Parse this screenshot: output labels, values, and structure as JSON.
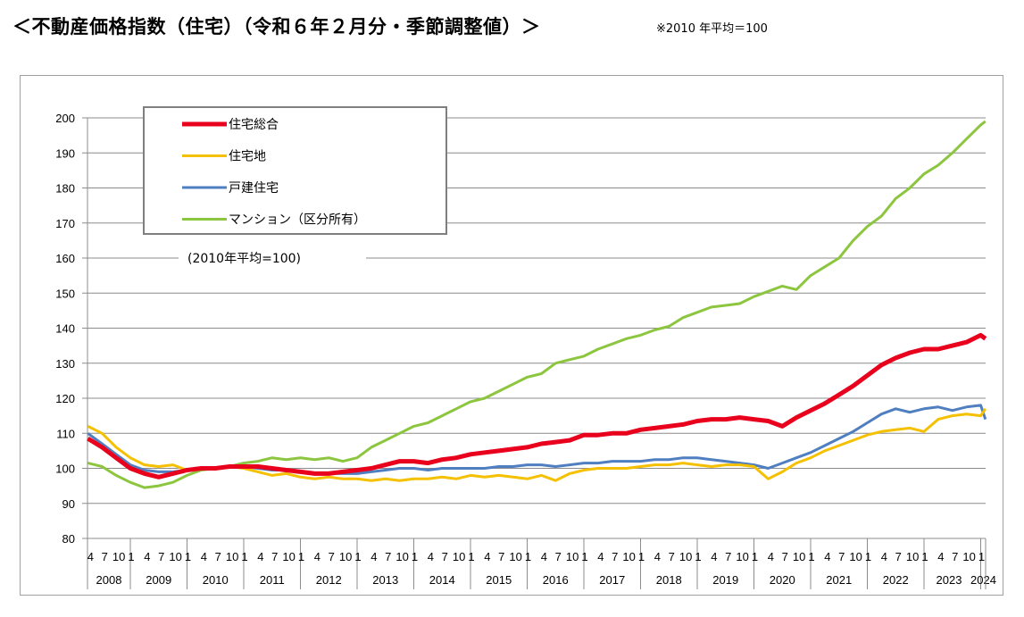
{
  "title": "＜不動産価格指数（住宅）（令和６年２月分・季節調整値）＞",
  "note": "※2010 年平均＝100",
  "chart_data": {
    "type": "line",
    "annotation": "(2010年平均=100)",
    "ylim": [
      80,
      200
    ],
    "yticks": [
      80,
      90,
      100,
      110,
      120,
      130,
      140,
      150,
      160,
      170,
      180,
      190,
      200
    ],
    "grid": true,
    "legend_position": "top-left",
    "month_tick_labels": [
      "1",
      "4",
      "7",
      "10"
    ],
    "years": [
      "2008",
      "2009",
      "2010",
      "2011",
      "2012",
      "2013",
      "2014",
      "2015",
      "2016",
      "2017",
      "2018",
      "2019",
      "2020",
      "2021",
      "2022",
      "2023",
      "2024"
    ],
    "x": [
      "2008-04",
      "2008-07",
      "2008-10",
      "2009-01",
      "2009-04",
      "2009-07",
      "2009-10",
      "2010-01",
      "2010-04",
      "2010-07",
      "2010-10",
      "2011-01",
      "2011-04",
      "2011-07",
      "2011-10",
      "2012-01",
      "2012-04",
      "2012-07",
      "2012-10",
      "2013-01",
      "2013-04",
      "2013-07",
      "2013-10",
      "2014-01",
      "2014-04",
      "2014-07",
      "2014-10",
      "2015-01",
      "2015-04",
      "2015-07",
      "2015-10",
      "2016-01",
      "2016-04",
      "2016-07",
      "2016-10",
      "2017-01",
      "2017-04",
      "2017-07",
      "2017-10",
      "2018-01",
      "2018-04",
      "2018-07",
      "2018-10",
      "2019-01",
      "2019-04",
      "2019-07",
      "2019-10",
      "2020-01",
      "2020-04",
      "2020-07",
      "2020-10",
      "2021-01",
      "2021-04",
      "2021-07",
      "2021-10",
      "2022-01",
      "2022-04",
      "2022-07",
      "2022-10",
      "2023-01",
      "2023-04",
      "2023-07",
      "2023-10",
      "2024-01",
      "2024-02"
    ],
    "series": [
      {
        "name": "住宅総合",
        "color": "#e8001c",
        "values": [
          108.5,
          106,
          103,
          100,
          98.5,
          97.5,
          98.5,
          99.5,
          100,
          100,
          100.5,
          100.5,
          100.5,
          100,
          99.5,
          99,
          98.5,
          98.5,
          99,
          99.5,
          100,
          101,
          102,
          102,
          101.5,
          102.5,
          103,
          104,
          104.5,
          105,
          105.5,
          106,
          107,
          107.5,
          108,
          109.5,
          109.5,
          110,
          110,
          111,
          111.5,
          112,
          112.5,
          113.5,
          114,
          114,
          114.5,
          114,
          113.5,
          112,
          114.5,
          116.5,
          118.5,
          121,
          123.5,
          126.5,
          129.5,
          131.5,
          133,
          134,
          134,
          135,
          136,
          138,
          137
        ]
      },
      {
        "name": "住宅地",
        "color": "#f5c000",
        "values": [
          112,
          110,
          106,
          103,
          101,
          100.5,
          101,
          99.5,
          100,
          100,
          100.5,
          100,
          99,
          98,
          98.5,
          97.5,
          97,
          97.5,
          97,
          97,
          96.5,
          97,
          96.5,
          97,
          97,
          97.5,
          97,
          98,
          97.5,
          98,
          97.5,
          97,
          98,
          96.5,
          98.5,
          99.5,
          100,
          100,
          100,
          100.5,
          101,
          101,
          101.5,
          101,
          100.5,
          101,
          101,
          100.5,
          97,
          99,
          101.5,
          103,
          105,
          106.5,
          108,
          109.5,
          110.5,
          111,
          111.5,
          110.5,
          114,
          115,
          115.5,
          115,
          117
        ]
      },
      {
        "name": "戸建住宅",
        "color": "#4f7fc0",
        "values": [
          110,
          107,
          104,
          101,
          99.5,
          99,
          99,
          99.5,
          100,
          100,
          100.5,
          100.5,
          100,
          99.5,
          99.5,
          99,
          98.5,
          98.5,
          98.5,
          98.5,
          99,
          99.5,
          100,
          100,
          99.5,
          100,
          100,
          100,
          100,
          100.5,
          100.5,
          101,
          101,
          100.5,
          101,
          101.5,
          101.5,
          102,
          102,
          102,
          102.5,
          102.5,
          103,
          103,
          102.5,
          102,
          101.5,
          101,
          100,
          101.5,
          103,
          104.5,
          106.5,
          108.5,
          110.5,
          113,
          115.5,
          117,
          116,
          117,
          117.5,
          116.5,
          117.5,
          118,
          114
        ]
      },
      {
        "name": "マンション（区分所有）",
        "color": "#8cc63f",
        "values": [
          101.5,
          100.5,
          98,
          96,
          94.5,
          95,
          96,
          98,
          99.5,
          100,
          100.5,
          101.5,
          102,
          103,
          102.5,
          103,
          102.5,
          103,
          102,
          103,
          106,
          108,
          110,
          112,
          113,
          115,
          117,
          119,
          120,
          122,
          124,
          126,
          127,
          130,
          131,
          132,
          134,
          135.5,
          137,
          138,
          139.5,
          140.5,
          143,
          144.5,
          146,
          146.5,
          147,
          149,
          150.5,
          152,
          151,
          155,
          157.5,
          160,
          165,
          169,
          172,
          177,
          180,
          184,
          186.5,
          190,
          194,
          198,
          199
        ]
      }
    ]
  }
}
